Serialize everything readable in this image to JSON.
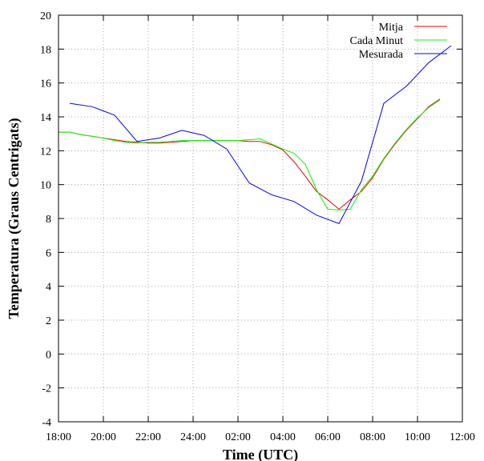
{
  "chart_data": {
    "type": "line",
    "title": "",
    "xlabel": "Time (UTC)",
    "ylabel": "Temperatura (Graus Centrigats)",
    "xlim": [
      0,
      18
    ],
    "ylim": [
      -4,
      20
    ],
    "x_ticks": [
      0,
      2,
      4,
      6,
      8,
      10,
      12,
      14,
      16,
      18
    ],
    "x_tick_labels": [
      "18:00",
      "20:00",
      "22:00",
      "24:00",
      "02:00",
      "04:00",
      "06:00",
      "08:00",
      "10:00",
      "12:00"
    ],
    "y_ticks": [
      -4,
      -2,
      0,
      2,
      4,
      6,
      8,
      10,
      12,
      14,
      16,
      18,
      20
    ],
    "y_tick_labels": [
      "-4",
      "-2",
      "0",
      "2",
      "4",
      "6",
      "8",
      "10",
      "12",
      "14",
      "16",
      "18",
      "20"
    ],
    "grid": true,
    "legend_position": "top-right",
    "series": [
      {
        "name": "Mitja",
        "color": "#ff0000",
        "points": [
          [
            0,
            13.1
          ],
          [
            0.5,
            13.1
          ],
          [
            1,
            12.95
          ],
          [
            1.5,
            12.85
          ],
          [
            2,
            12.75
          ],
          [
            2.5,
            12.65
          ],
          [
            3,
            12.55
          ],
          [
            3.5,
            12.5
          ],
          [
            4,
            12.45
          ],
          [
            4.5,
            12.45
          ],
          [
            5,
            12.5
          ],
          [
            5.5,
            12.55
          ],
          [
            6,
            12.6
          ],
          [
            6.5,
            12.6
          ],
          [
            7,
            12.6
          ],
          [
            7.5,
            12.6
          ],
          [
            8,
            12.6
          ],
          [
            8.5,
            12.55
          ],
          [
            9,
            12.55
          ],
          [
            9.5,
            12.35
          ],
          [
            10,
            12.05
          ],
          [
            10.5,
            11.35
          ],
          [
            11,
            10.5
          ],
          [
            11.5,
            9.6
          ],
          [
            12,
            9.1
          ],
          [
            12.5,
            8.55
          ],
          [
            13,
            9.1
          ],
          [
            13.5,
            9.6
          ],
          [
            14,
            10.4
          ],
          [
            14.5,
            11.5
          ],
          [
            15,
            12.4
          ],
          [
            15.5,
            13.2
          ],
          [
            16,
            13.9
          ],
          [
            16.5,
            14.6
          ],
          [
            17,
            15.05
          ]
        ]
      },
      {
        "name": "Cada Minut",
        "color": "#00ff00",
        "points": [
          [
            0,
            13.1
          ],
          [
            0.5,
            13.1
          ],
          [
            1,
            12.95
          ],
          [
            1.5,
            12.85
          ],
          [
            2,
            12.75
          ],
          [
            2.5,
            12.6
          ],
          [
            3,
            12.5
          ],
          [
            3.5,
            12.45
          ],
          [
            4,
            12.5
          ],
          [
            4.5,
            12.5
          ],
          [
            5,
            12.55
          ],
          [
            5.5,
            12.6
          ],
          [
            6,
            12.6
          ],
          [
            6.5,
            12.6
          ],
          [
            7,
            12.6
          ],
          [
            7.5,
            12.6
          ],
          [
            8,
            12.6
          ],
          [
            8.5,
            12.65
          ],
          [
            9,
            12.7
          ],
          [
            9.5,
            12.4
          ],
          [
            10,
            12.1
          ],
          [
            10.5,
            11.85
          ],
          [
            11,
            11.2
          ],
          [
            11.5,
            9.7
          ],
          [
            12,
            8.55
          ],
          [
            12.5,
            8.5
          ],
          [
            13,
            8.55
          ],
          [
            13.5,
            9.7
          ],
          [
            14,
            10.5
          ],
          [
            14.5,
            11.55
          ],
          [
            15,
            12.45
          ],
          [
            15.5,
            13.25
          ],
          [
            16,
            13.95
          ],
          [
            16.5,
            14.55
          ],
          [
            17,
            15.0
          ]
        ]
      },
      {
        "name": "Mesurada",
        "color": "#0000ff",
        "points": [
          [
            0.5,
            14.8
          ],
          [
            1.5,
            14.6
          ],
          [
            2.5,
            14.1
          ],
          [
            3.5,
            12.55
          ],
          [
            4.5,
            12.75
          ],
          [
            5.5,
            13.2
          ],
          [
            6.5,
            12.9
          ],
          [
            7.5,
            12.1
          ],
          [
            8.5,
            10.1
          ],
          [
            9.5,
            9.4
          ],
          [
            10.5,
            9.0
          ],
          [
            11.5,
            8.2
          ],
          [
            12.5,
            7.7
          ],
          [
            13.5,
            10.2
          ],
          [
            14.5,
            14.8
          ],
          [
            15.5,
            15.8
          ],
          [
            16.5,
            17.2
          ],
          [
            17.5,
            18.2
          ]
        ]
      }
    ]
  }
}
